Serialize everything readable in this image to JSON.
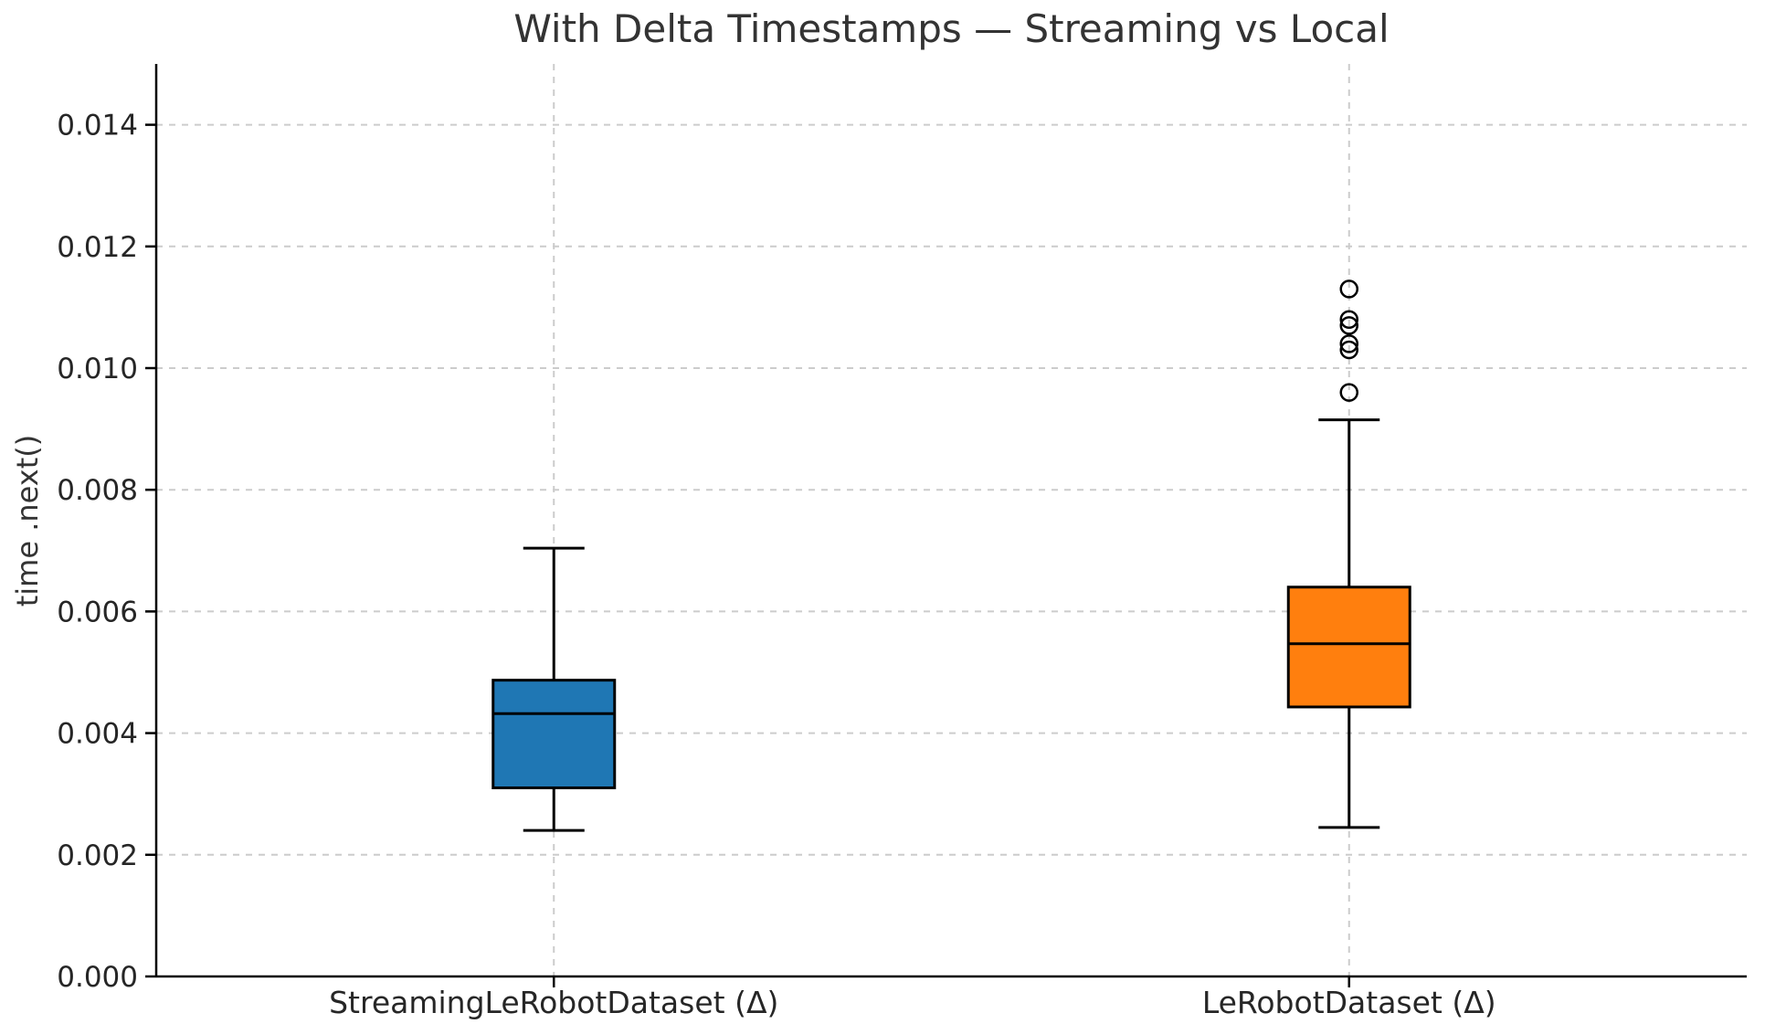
{
  "chart_data": {
    "type": "boxplot",
    "title": "With Delta Timestamps — Streaming vs Local",
    "xlabel": "",
    "ylabel": "time .next()",
    "categories": [
      "StreamingLeRobotDataset (Δ)",
      "LeRobotDataset (Δ)"
    ],
    "ylim": [
      0,
      0.015
    ],
    "yticks": [
      0,
      0.002,
      0.004,
      0.006,
      0.008,
      0.01,
      0.012,
      0.014
    ],
    "ytick_labels": [
      "0.000",
      "0.002",
      "0.004",
      "0.006",
      "0.008",
      "0.010",
      "0.012",
      "0.014"
    ],
    "grid": {
      "horizontal": true,
      "vertical_at_categories": true,
      "style": "dashed"
    },
    "legend_position": "none",
    "series": [
      {
        "label": "StreamingLeRobotDataset (Δ)",
        "color": "#1f77b4",
        "whislo": 0.0024,
        "q1": 0.0031,
        "med": 0.00432,
        "q3": 0.00487,
        "whishi": 0.00704,
        "fliers": []
      },
      {
        "label": "LeRobotDataset (Δ)",
        "color": "#ff7f0e",
        "whislo": 0.00245,
        "q1": 0.00443,
        "med": 0.00547,
        "q3": 0.0064,
        "whishi": 0.00915,
        "fliers": [
          0.0096,
          0.0103,
          0.0104,
          0.0107,
          0.0108,
          0.0113
        ]
      }
    ]
  },
  "colors": {
    "grid": "#cccccc",
    "spine": "#000000",
    "box_edge": "#000000",
    "text": "#262626",
    "title_text": "#333333"
  }
}
